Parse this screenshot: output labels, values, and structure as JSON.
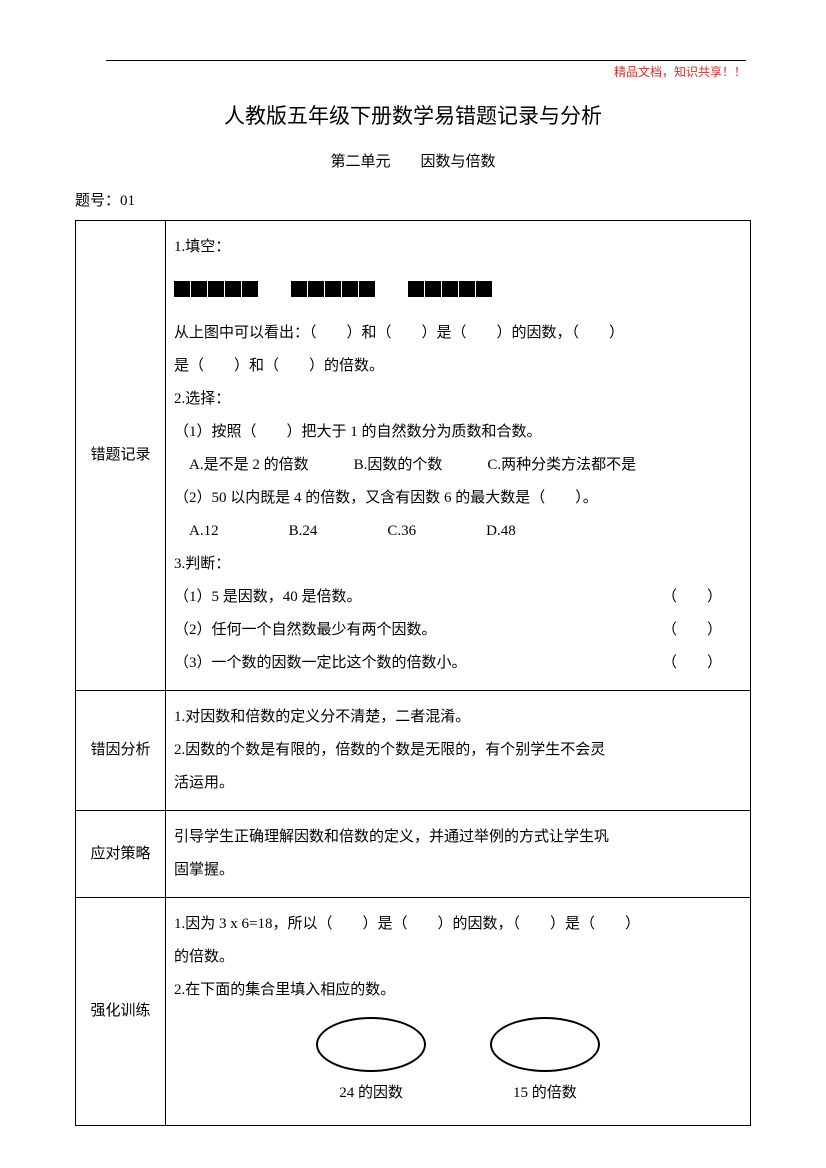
{
  "header": {
    "note": "精品文档，知识共享！！"
  },
  "title": "人教版五年级下册数学易错题记录与分析",
  "subtitle": "第二单元　　因数与倍数",
  "question_number": "题号：01",
  "rows": {
    "record": {
      "label": "错题记录",
      "fill_title": "1.填空：",
      "fill_line1": "从上图中可以看出：（　　）和（　　）是（　　）的因数，（　　）",
      "fill_line2": "是（　　）和（　　）的倍数。",
      "select_title": "2.选择：",
      "select_q1": "（1）按照（　　）把大于 1 的自然数分为质数和合数。",
      "select_q1_opts": "　A.是不是 2 的倍数　　　B.因数的个数　　　C.两种分类方法都不是",
      "select_q2": "（2）50 以内既是 4 的倍数，又含有因数 6 的最大数是（　　）。",
      "select_q2_a": "A.12",
      "select_q2_b": "B.24",
      "select_q2_c": "C.36",
      "select_q2_d": "D.48",
      "judge_title": "3.判断：",
      "judge_1": "（1）5 是因数，40 是倍数。",
      "judge_2": "（2）任何一个自然数最少有两个因数。",
      "judge_3": "（3）一个数的因数一定比这个数的倍数小。",
      "paren": "（　　）"
    },
    "analysis": {
      "label": "错因分析",
      "line1": "1.对因数和倍数的定义分不清楚，二者混淆。",
      "line2": "2.因数的个数是有限的，倍数的个数是无限的，有个别学生不会灵",
      "line3": "活运用。"
    },
    "strategy": {
      "label": "应对策略",
      "line1": "引导学生正确理解因数和倍数的定义，并通过举例的方式让学生巩",
      "line2": "固掌握。"
    },
    "training": {
      "label": "强化训练",
      "line1": "1.因为 3 x 6=18，所以（　　）是（　　）的因数，（　　）是（　　）",
      "line2": "的倍数。",
      "line3": "2.在下面的集合里填入相应的数。",
      "oval1_label": "24 的因数",
      "oval2_label": "15 的倍数"
    }
  }
}
